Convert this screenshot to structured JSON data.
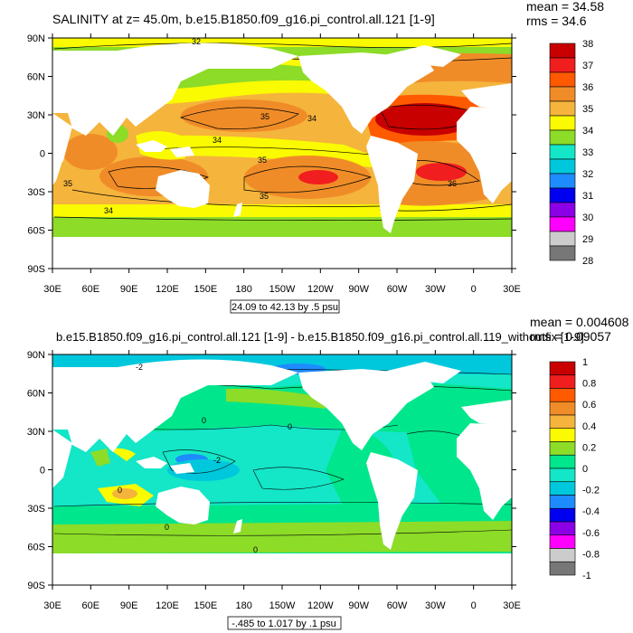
{
  "top_panel": {
    "title": "SALINITY at z=  45.0m, b.e15.B1850.f09_g16.pi_control.all.121 [1-9]",
    "mean_text": "mean = 34.58",
    "rms_text": "rms = 34.6",
    "range_text": "24.09 to 42.13 by .5 psu",
    "colorbar_labels": [
      "38",
      "37",
      "36",
      "35",
      "34",
      "33",
      "32",
      "31",
      "30",
      "29",
      "28"
    ],
    "colorbar_colors": [
      "#c80000",
      "#f01e1e",
      "#ff5a00",
      "#f08c28",
      "#f5b43c",
      "#fafa00",
      "#8cdc28",
      "#14e6c8",
      "#00c8dc",
      "#1e8cff",
      "#0000f0",
      "#8c00e6",
      "#ff00ff",
      "#cccccc",
      "#777777"
    ],
    "contour_labels": [
      "32",
      "35",
      "34",
      "34",
      "35",
      "35",
      "34",
      "36",
      "35"
    ]
  },
  "bottom_panel": {
    "title": "b.e15.B1850.f09_g16.pi_control.all.121 [1-9] - b.e15.B1850.f09_g16.pi_control.all.119_withoutfix [1-9]",
    "mean_text": "mean = 0.004608",
    "rms_text": "rms = 0.09057",
    "range_text": "-.485 to 1.017 by .1 psu",
    "colorbar_labels": [
      "1",
      "0.8",
      "0.6",
      "0.4",
      "0.2",
      "0",
      "-0.2",
      "-0.4",
      "-0.6",
      "-0.8",
      "-1"
    ],
    "colorbar_colors": [
      "#c80000",
      "#f01e1e",
      "#ff5a00",
      "#f08c28",
      "#f5b43c",
      "#fafa00",
      "#8cdc28",
      "#00e68c",
      "#14e6c8",
      "#00c8dc",
      "#1e8cff",
      "#0000f0",
      "#8c00e6",
      "#ff00ff",
      "#cccccc",
      "#777777"
    ],
    "contour_labels": [
      "-2",
      "0",
      "0",
      "-2",
      "0",
      "0",
      "0"
    ]
  },
  "axes": {
    "lat_labels": [
      "90N",
      "60N",
      "30N",
      "0",
      "30S",
      "60S",
      "90S"
    ],
    "lon_labels": [
      "30E",
      "60E",
      "90E",
      "120E",
      "150E",
      "180",
      "150W",
      "120W",
      "90W",
      "60W",
      "30W",
      "0",
      "30E"
    ]
  },
  "colors": {
    "land": "#ffffff",
    "top_base": "#f5b43c",
    "bottom_base": "#14e6c8"
  }
}
